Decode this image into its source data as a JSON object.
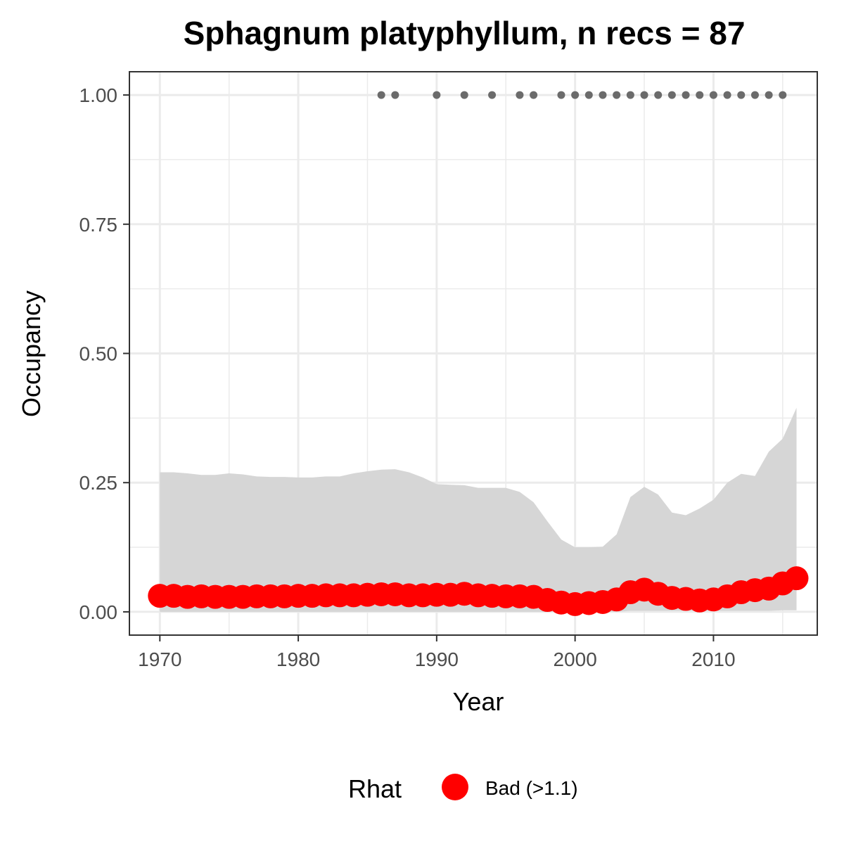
{
  "chart_data": {
    "type": "line",
    "title": "Sphagnum platyphyllum, n recs = 87",
    "xlabel": "Year",
    "ylabel": "Occupancy",
    "xlim": [
      1967.8,
      2017.5
    ],
    "ylim": [
      -0.045,
      1.045
    ],
    "x_ticks": [
      1970,
      1980,
      1990,
      2000,
      2010
    ],
    "x_tick_labels": [
      "1970",
      "1980",
      "1990",
      "2000",
      "2010"
    ],
    "y_ticks": [
      0,
      0.25,
      0.5,
      0.75,
      1.0
    ],
    "y_tick_labels": [
      "0.00",
      "0.25",
      "0.50",
      "0.75",
      "1.00"
    ],
    "grid": true,
    "legend_position": "bottom",
    "legend": {
      "title": "Rhat",
      "entries": [
        {
          "label": "Bad (>1.1)",
          "color": "#ff0000"
        }
      ]
    },
    "colors": {
      "mean": "#ff0000",
      "ribbon": "#d6d6d6",
      "records": "#6b6b6b",
      "panel_border": "#333333",
      "grid": "#ebebeb"
    },
    "x": [
      1970,
      1971,
      1972,
      1973,
      1974,
      1975,
      1976,
      1977,
      1978,
      1979,
      1980,
      1981,
      1982,
      1983,
      1984,
      1985,
      1986,
      1987,
      1988,
      1989,
      1990,
      1991,
      1992,
      1993,
      1994,
      1995,
      1996,
      1997,
      1998,
      1999,
      2000,
      2001,
      2002,
      2003,
      2004,
      2005,
      2006,
      2007,
      2008,
      2009,
      2010,
      2011,
      2012,
      2013,
      2014,
      2015,
      2016
    ],
    "series": [
      {
        "role": "mean",
        "rhat": "Bad (>1.1)",
        "values": [
          0.031,
          0.031,
          0.029,
          0.03,
          0.029,
          0.029,
          0.029,
          0.03,
          0.03,
          0.03,
          0.031,
          0.031,
          0.032,
          0.032,
          0.032,
          0.033,
          0.034,
          0.034,
          0.032,
          0.032,
          0.033,
          0.033,
          0.035,
          0.032,
          0.031,
          0.03,
          0.03,
          0.029,
          0.023,
          0.018,
          0.015,
          0.017,
          0.019,
          0.024,
          0.038,
          0.043,
          0.035,
          0.027,
          0.025,
          0.022,
          0.024,
          0.03,
          0.038,
          0.042,
          0.045,
          0.055,
          0.065
        ]
      },
      {
        "role": "upper_ci",
        "values": [
          0.27,
          0.27,
          0.268,
          0.265,
          0.265,
          0.268,
          0.266,
          0.262,
          0.261,
          0.261,
          0.26,
          0.26,
          0.262,
          0.262,
          0.268,
          0.272,
          0.275,
          0.276,
          0.27,
          0.26,
          0.247,
          0.246,
          0.245,
          0.24,
          0.24,
          0.24,
          0.232,
          0.212,
          0.175,
          0.14,
          0.125,
          0.125,
          0.126,
          0.15,
          0.222,
          0.242,
          0.227,
          0.192,
          0.187,
          0.2,
          0.217,
          0.25,
          0.267,
          0.263,
          0.31,
          0.335,
          0.395
        ]
      },
      {
        "role": "lower_ci",
        "values": [
          0.0,
          0.0,
          0.0,
          0.0,
          0.0,
          0.0,
          0.0,
          0.0,
          0.0,
          0.0,
          0.0,
          0.0,
          0.0,
          0.0,
          0.0,
          0.0,
          0.0,
          0.0,
          0.0,
          0.0,
          0.0,
          0.0,
          0.0,
          0.0,
          0.0,
          0.0,
          0.0,
          0.0,
          0.0,
          0.0,
          0.0,
          0.0,
          0.0,
          0.0,
          0.002,
          0.002,
          0.002,
          0.002,
          0.002,
          0.002,
          0.002,
          0.002,
          0.002,
          0.002,
          0.002,
          0.003,
          0.003
        ]
      }
    ],
    "record_years": [
      1986,
      1987,
      1990,
      1992,
      1994,
      1996,
      1997,
      1999,
      2000,
      2001,
      2002,
      2003,
      2004,
      2005,
      2006,
      2007,
      2008,
      2009,
      2010,
      2011,
      2012,
      2013,
      2014,
      2015
    ],
    "record_value": 1.0
  }
}
